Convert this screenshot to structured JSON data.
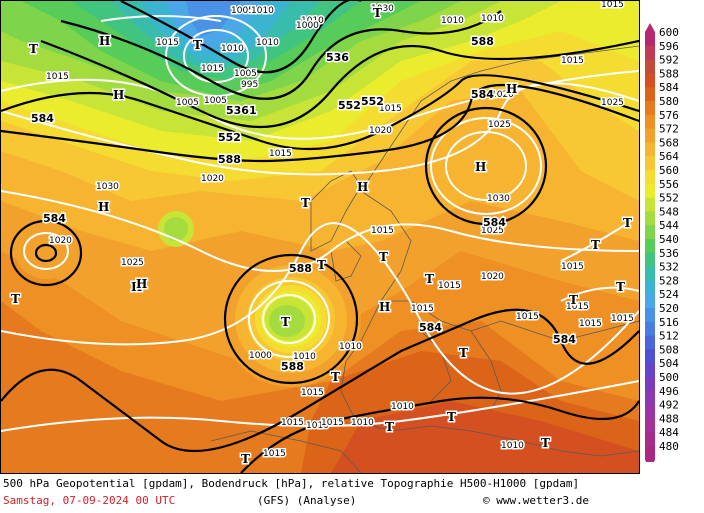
{
  "map": {
    "pressure_labels": [
      "1005",
      "1005",
      "1005",
      "1005",
      "1010",
      "1010",
      "1010",
      "1010",
      "1010",
      "1010",
      "1015",
      "1015",
      "1015",
      "1015",
      "1015",
      "1015",
      "1015",
      "1015",
      "1015",
      "1015",
      "1015",
      "1015",
      "1015",
      "1020",
      "1020",
      "1020",
      "1020",
      "1020",
      "1025",
      "1025",
      "1025",
      "1025",
      "1030",
      "1030",
      "1030",
      "995",
      "1000",
      "1000",
      "1010",
      "1010",
      "1010",
      "1015",
      "1015",
      "1015",
      "1010",
      "1015",
      "1015",
      "1010",
      "1010",
      "1015"
    ],
    "geopotential_labels": [
      "584",
      "584",
      "584",
      "584",
      "584",
      "588",
      "588",
      "588",
      "588",
      "552",
      "552",
      "536",
      "5361",
      "552",
      "584"
    ],
    "high_markers": [
      "H",
      "H",
      "H",
      "H",
      "H",
      "H",
      "H",
      "H",
      "H"
    ],
    "low_markers": [
      "T",
      "T",
      "T",
      "T",
      "T",
      "T",
      "T",
      "T",
      "T",
      "T",
      "T",
      "T",
      "T",
      "T",
      "T",
      "T",
      "T",
      "T",
      "T"
    ]
  },
  "legend": {
    "values": [
      "600",
      "596",
      "592",
      "588",
      "584",
      "580",
      "576",
      "572",
      "568",
      "564",
      "560",
      "556",
      "552",
      "548",
      "544",
      "540",
      "536",
      "532",
      "528",
      "524",
      "520",
      "516",
      "512",
      "508",
      "504",
      "500",
      "496",
      "492",
      "488",
      "484",
      "480"
    ],
    "colors": {
      "600": "#b8286e",
      "596": "#c23a5a",
      "592": "#c44a3c",
      "588": "#d45020",
      "584": "#dc6418",
      "580": "#e67a1e",
      "576": "#ee9024",
      "572": "#f2a22c",
      "568": "#f6b430",
      "564": "#f8c834",
      "560": "#f4dc30",
      "556": "#ecec2e",
      "552": "#c8e436",
      "548": "#a4dc40",
      "544": "#7ed44a",
      "540": "#58cc58",
      "536": "#40c480",
      "532": "#38bcac",
      "528": "#3ab4d0",
      "524": "#4aa8e8",
      "520": "#4a92e6",
      "516": "#4a7ce2",
      "512": "#4a66dc",
      "508": "#5050d2",
      "504": "#6444c8",
      "500": "#7a3cbc",
      "496": "#8c38b0",
      "492": "#9a34a4",
      "488": "#a43098",
      "484": "#a82c8c",
      "480": "#a82884"
    }
  },
  "caption": {
    "line1": "500 hPa Geopotential [gpdam], Bodendruck [hPa], relative Topographie H500-H1000 [gpdam]",
    "date": "Samstag, 07-09-2024  00 UTC",
    "model": "(GFS)  (Analyse)",
    "copyright": "© www.wetter3.de"
  }
}
